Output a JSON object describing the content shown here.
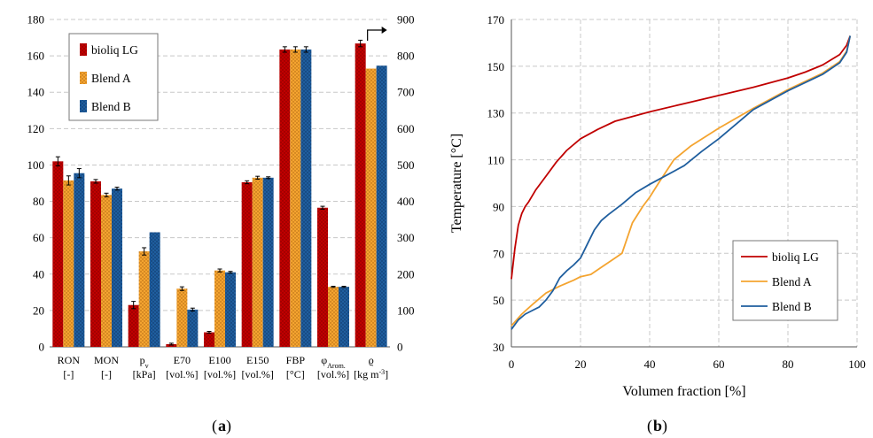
{
  "colors": {
    "bioliq": "#c00000",
    "blendA": "#f4a430",
    "blendB": "#1f5e9e",
    "grid": "#c8c8c8"
  },
  "panels": {
    "a": {
      "label": "a"
    },
    "b": {
      "label": "b"
    }
  },
  "chart_data": [
    {
      "type": "bar",
      "title": "",
      "categories": [
        {
          "line1": "RON",
          "line2": "[-]"
        },
        {
          "line1": "MON",
          "line2": "[-]"
        },
        {
          "line1": "p",
          "line1_sub": "v",
          "line2": "[kPa]"
        },
        {
          "line1": "E70",
          "line2": "[vol.%]"
        },
        {
          "line1": "E100",
          "line2": "[vol.%]"
        },
        {
          "line1": "E150",
          "line2": "[vol.%]"
        },
        {
          "line1": "FBP",
          "line2": "[°C]"
        },
        {
          "line1": "φ",
          "line1_sub": "Arom.",
          "line2": "[vol.%]"
        },
        {
          "line1": "ϱ",
          "line2": "[kg m",
          "line2_sup": "-3",
          "line2_end": "]"
        }
      ],
      "series": [
        {
          "name": "bioliq LG",
          "values": [
            102,
            91,
            23,
            1.5,
            8,
            90.5,
            163.5,
            76.5,
            834
          ],
          "errors": [
            2.5,
            1,
            2,
            0.5,
            0.5,
            0.8,
            1.5,
            0.8,
            9
          ]
        },
        {
          "name": "Blend A",
          "values": [
            91.5,
            83.5,
            52.5,
            32,
            42,
            93,
            163.5,
            33,
            765
          ],
          "errors": [
            2.5,
            1,
            2,
            1,
            0.8,
            0.8,
            1.5,
            0.3,
            0
          ]
        },
        {
          "name": "Blend B",
          "values": [
            95.5,
            87,
            63,
            20.5,
            41,
            93,
            163.5,
            33,
            773
          ],
          "errors": [
            2.5,
            0.8,
            0,
            0.8,
            0.5,
            0.5,
            1.5,
            0.3,
            0
          ]
        }
      ],
      "secondary_axis_category": 8,
      "ylim": [
        0,
        180
      ],
      "yticks": [
        0,
        20,
        40,
        60,
        80,
        100,
        120,
        140,
        160,
        180
      ],
      "y2lim": [
        0,
        900
      ],
      "y2ticks": [
        0,
        100,
        200,
        300,
        400,
        500,
        600,
        700,
        800,
        900
      ],
      "legend": "top-left",
      "grid": true
    },
    {
      "type": "line",
      "title": "",
      "xlabel": "Volumen fraction [%]",
      "ylabel": "Temperature [°C]",
      "xlim": [
        0,
        100
      ],
      "ylim": [
        30,
        170
      ],
      "xticks": [
        0,
        20,
        40,
        60,
        80,
        100
      ],
      "yticks": [
        30,
        50,
        70,
        90,
        110,
        130,
        150,
        170
      ],
      "grid": true,
      "legend": "bottom-right",
      "series": [
        {
          "name": "bioliq LG",
          "x": [
            0,
            1,
            2,
            3,
            4,
            5,
            7,
            10,
            13,
            16,
            20,
            25,
            30,
            40,
            50,
            60,
            70,
            80,
            85,
            90,
            95,
            97,
            98
          ],
          "y": [
            59,
            72,
            82,
            87,
            90,
            92,
            97,
            103,
            109,
            114,
            119,
            123,
            126.5,
            130.5,
            134,
            137.5,
            141,
            145,
            147.5,
            150.5,
            155,
            159,
            163
          ]
        },
        {
          "name": "Blend A",
          "x": [
            0,
            3,
            6,
            10,
            14,
            18,
            20,
            23,
            26,
            29,
            32,
            35,
            38,
            40,
            43,
            47,
            52,
            60,
            70,
            80,
            90,
            95,
            97,
            98
          ],
          "y": [
            39,
            44,
            48,
            53,
            56,
            58.5,
            60,
            61,
            64,
            67,
            70,
            83,
            90,
            94,
            101,
            110,
            116,
            123.5,
            132,
            140,
            147,
            152,
            156.5,
            163
          ]
        },
        {
          "name": "Blend B",
          "x": [
            0,
            2,
            4,
            6,
            8,
            10,
            12,
            14,
            16,
            18,
            20,
            22,
            24,
            26,
            28,
            32,
            36,
            40,
            45,
            50,
            55,
            60,
            70,
            80,
            90,
            95,
            97,
            98
          ],
          "y": [
            37.5,
            41.5,
            44,
            45.5,
            47,
            50,
            54,
            59.5,
            62.5,
            65,
            68,
            74,
            80,
            84,
            86.5,
            91,
            96,
            99.5,
            103.5,
            107.5,
            113.5,
            119,
            131.5,
            139.5,
            146.5,
            151.5,
            156,
            163
          ]
        }
      ]
    }
  ]
}
